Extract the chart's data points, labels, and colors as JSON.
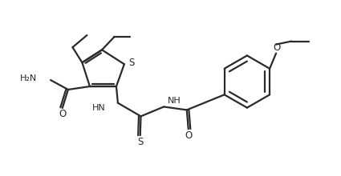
{
  "background_color": "#ffffff",
  "line_color": "#2a2a2a",
  "line_width": 1.6,
  "figsize": [
    4.25,
    2.2
  ],
  "dpi": 100,
  "xlim": [
    0,
    10.5
  ],
  "ylim": [
    0,
    5.5
  ]
}
